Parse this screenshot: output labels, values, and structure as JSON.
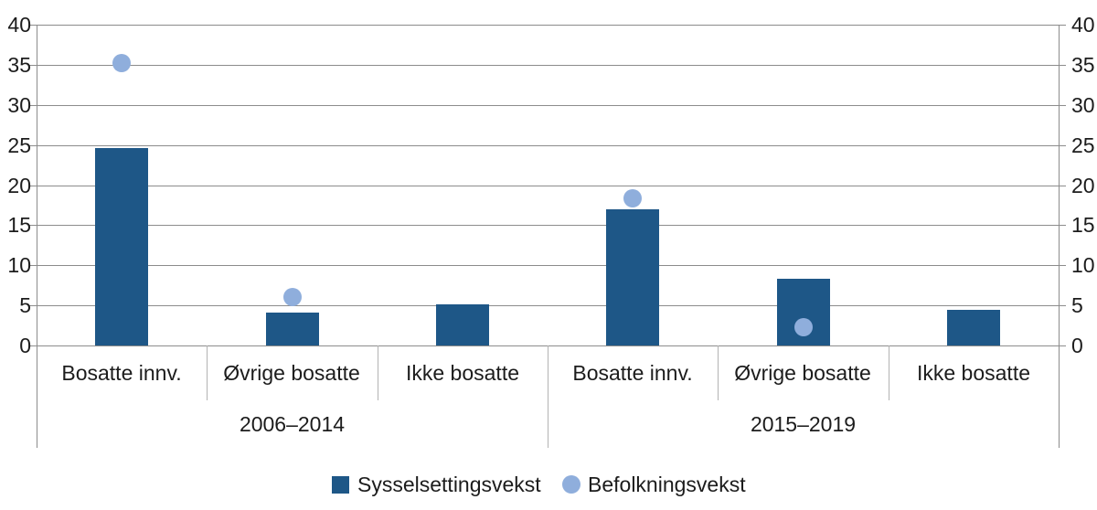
{
  "chart_data": {
    "type": "bar",
    "title": "",
    "xlabel": "",
    "ylabel": "",
    "ylim": [
      0,
      40
    ],
    "ytick_step": 5,
    "yticks": [
      0,
      5,
      10,
      15,
      20,
      25,
      30,
      35,
      40
    ],
    "grid": true,
    "dual_y_axis_labels": true,
    "legend_position": "bottom",
    "period_groups": [
      {
        "label": "2006–2014",
        "categories": [
          "Bosatte innv.",
          "Øvrige bosatte",
          "Ikke bosatte"
        ]
      },
      {
        "label": "2015–2019",
        "categories": [
          "Bosatte innv.",
          "Øvrige bosatte",
          "Ikke bosatte"
        ]
      }
    ],
    "series": [
      {
        "name": "Sysselsettingsvekst",
        "type": "bar",
        "color": "#1E5787",
        "values": [
          24.6,
          4.1,
          5.1,
          17,
          8.3,
          4.4
        ]
      },
      {
        "name": "Befolkningsvekst",
        "type": "scatter",
        "color": "#8FAEDC",
        "values": [
          35.2,
          6,
          null,
          18.4,
          2.3,
          null
        ]
      }
    ]
  },
  "colors": {
    "bar": "#1E5787",
    "marker": "#8FAEDC",
    "gridline": "#8c8c8c",
    "separator": "#b3b3b3",
    "text": "#1c1c1c",
    "background": "#ffffff"
  }
}
